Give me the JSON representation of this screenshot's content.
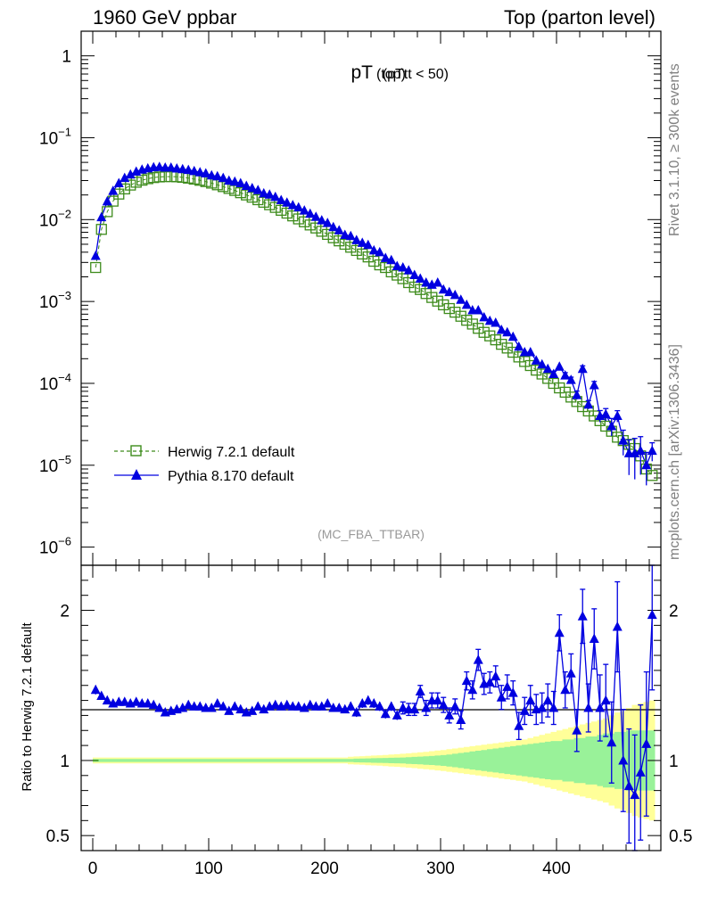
{
  "header": {
    "left": "1960 GeV ppbar",
    "right": "Top (parton level)"
  },
  "side_text": {
    "top": "Rivet 3.1.10, ≥ 300k events",
    "bottom": "mcplots.cern.ch [arXiv:1306.3436]"
  },
  "chart_data": {
    "type": "line",
    "title_main": "pT",
    "title_sub": "(top)",
    "title_cut": "(pTtt < 50)",
    "watermark": "(MC_FBA_TTBAR)",
    "x_range": [
      -10,
      490
    ],
    "x_ticks": [
      0,
      100,
      200,
      300,
      400
    ],
    "x_tick_labels": [
      "0",
      "100",
      "200",
      "300",
      "400"
    ],
    "upper": {
      "scale": "log",
      "y_range": [
        6e-07,
        2
      ],
      "y_ticks": [
        {
          "value": 1,
          "base": "1",
          "exp": ""
        },
        {
          "value": 0.1,
          "base": "10",
          "exp": "−1"
        },
        {
          "value": 0.01,
          "base": "10",
          "exp": "−2"
        },
        {
          "value": 0.001,
          "base": "10",
          "exp": "−3"
        },
        {
          "value": 0.0001,
          "base": "10",
          "exp": "−4"
        },
        {
          "value": 1e-05,
          "base": "10",
          "exp": "−5"
        },
        {
          "value": 1e-06,
          "base": "10",
          "exp": "−6"
        }
      ]
    },
    "lower": {
      "ylabel": "Ratio to Herwig 7.2.1 default",
      "y_range": [
        0.4,
        2.3
      ],
      "y_ticks": [
        0.5,
        1,
        2
      ],
      "y_tick_labels": [
        "0.5",
        "1",
        "2"
      ]
    },
    "bin_start": 0,
    "bin_width": 5,
    "legend": [
      {
        "name": "Herwig 7.2.1 default",
        "color": "#3d8b1b",
        "marker": "open-square",
        "dashed": true
      },
      {
        "name": "Pythia 8.170 default",
        "color": "#0000e0",
        "marker": "filled-triangle",
        "dashed": false
      }
    ],
    "herwig": [
      0.0026,
      0.0076,
      0.0125,
      0.0168,
      0.0205,
      0.0237,
      0.0264,
      0.0286,
      0.0303,
      0.0316,
      0.0326,
      0.0332,
      0.0335,
      0.0335,
      0.0333,
      0.0328,
      0.0321,
      0.0312,
      0.0302,
      0.0291,
      0.0279,
      0.0266,
      0.0253,
      0.024,
      0.0227,
      0.0213,
      0.02,
      0.0188,
      0.0175,
      0.0163,
      0.0152,
      0.0141,
      0.013,
      0.012,
      0.0111,
      0.0102,
      0.0094,
      0.0086,
      0.0079,
      0.0072,
      0.0066,
      0.006,
      0.0055,
      0.005,
      0.0046,
      0.0042,
      0.0038,
      0.0035,
      0.0031,
      0.0028,
      0.0026,
      0.0023,
      0.0021,
      0.0019,
      0.0017,
      0.0015,
      0.0014,
      0.00125,
      0.00112,
      0.00101,
      0.00091,
      0.00082,
      0.00074,
      0.00066,
      0.00059,
      0.00053,
      0.00047,
      0.00042,
      0.00038,
      0.00034,
      0.0003,
      0.00027,
      0.00024,
      0.00021,
      0.000185,
      0.000165,
      0.000145,
      0.00013,
      0.000115,
      0.0001,
      8.8e-05,
      7.8e-05,
      6.8e-05,
      6e-05,
      5.2e-05,
      4.6e-05,
      4e-05,
      3.5e-05,
      3e-05,
      2.6e-05,
      2.2e-05,
      2e-05,
      1.8e-05,
      1.6e-05,
      1.3e-05,
      9e-06,
      7.5e-06
    ],
    "pythia": [
      0.0036,
      0.0107,
      0.0167,
      0.0224,
      0.0278,
      0.0322,
      0.0355,
      0.0386,
      0.0408,
      0.0422,
      0.0435,
      0.0439,
      0.0432,
      0.0432,
      0.0421,
      0.0413,
      0.0404,
      0.0392,
      0.0378,
      0.0366,
      0.0346,
      0.0338,
      0.0322,
      0.0299,
      0.0291,
      0.0278,
      0.0258,
      0.0242,
      0.0229,
      0.0209,
      0.0202,
      0.0189,
      0.0173,
      0.0161,
      0.015,
      0.0141,
      0.0129,
      0.0118,
      0.0108,
      0.0098,
      0.0091,
      0.0081,
      0.0074,
      0.0065,
      0.0063,
      0.0056,
      0.0052,
      0.0049,
      0.0042,
      0.004,
      0.0034,
      0.0032,
      0.0027,
      0.0026,
      0.0024,
      0.0021,
      0.0019,
      0.0017,
      0.0016,
      0.0017,
      0.0014,
      0.0013,
      0.0012,
      0.00105,
      0.00091,
      0.00078,
      0.00078,
      0.00064,
      0.00058,
      0.00055,
      0.00045,
      0.00042,
      0.00037,
      0.00028,
      0.00024,
      0.00024,
      0.00019,
      0.00017,
      0.00015,
      0.00013,
      0.00016,
      0.000125,
      0.00011,
      7.2e-05,
      0.00015,
      5.5e-05,
      9.5e-05,
      4e-05,
      4.2e-05,
      3e-05,
      4e-05,
      2e-05,
      1.4e-05,
      1.4e-05,
      1.5e-05,
      1e-05,
      1.5e-05
    ],
    "ratio": [
      1.47,
      1.43,
      1.4,
      1.38,
      1.39,
      1.39,
      1.38,
      1.39,
      1.38,
      1.38,
      1.37,
      1.35,
      1.32,
      1.33,
      1.34,
      1.35,
      1.37,
      1.36,
      1.36,
      1.35,
      1.35,
      1.38,
      1.36,
      1.33,
      1.36,
      1.34,
      1.32,
      1.33,
      1.36,
      1.34,
      1.36,
      1.37,
      1.36,
      1.37,
      1.36,
      1.36,
      1.35,
      1.37,
      1.36,
      1.36,
      1.38,
      1.35,
      1.35,
      1.34,
      1.36,
      1.32,
      1.38,
      1.4,
      1.38,
      1.36,
      1.31,
      1.36,
      1.3,
      1.35,
      1.34,
      1.34,
      1.46,
      1.35,
      1.4,
      1.4,
      1.37,
      1.3,
      1.36,
      1.27,
      1.53,
      1.47,
      1.67,
      1.51,
      1.52,
      1.56,
      1.42,
      1.49,
      1.45,
      1.23,
      1.33,
      1.4,
      1.34,
      1.35,
      1.4,
      1.35,
      1.85,
      1.47,
      1.58,
      1.2,
      1.96,
      1.35,
      1.81,
      1.35,
      1.4,
      1.12,
      1.89,
      1.0,
      0.83,
      0.77,
      0.92,
      1.11,
      1.97
    ],
    "ratio_err": [
      0.03,
      0.02,
      0.02,
      0.02,
      0.02,
      0.02,
      0.02,
      0.02,
      0.02,
      0.02,
      0.02,
      0.02,
      0.02,
      0.02,
      0.02,
      0.02,
      0.02,
      0.02,
      0.02,
      0.02,
      0.02,
      0.02,
      0.02,
      0.02,
      0.02,
      0.02,
      0.02,
      0.02,
      0.02,
      0.02,
      0.02,
      0.02,
      0.02,
      0.02,
      0.02,
      0.02,
      0.02,
      0.02,
      0.02,
      0.02,
      0.02,
      0.02,
      0.02,
      0.02,
      0.03,
      0.03,
      0.03,
      0.03,
      0.03,
      0.03,
      0.03,
      0.03,
      0.03,
      0.04,
      0.04,
      0.04,
      0.04,
      0.05,
      0.05,
      0.05,
      0.05,
      0.05,
      0.05,
      0.06,
      0.06,
      0.06,
      0.07,
      0.07,
      0.07,
      0.07,
      0.08,
      0.08,
      0.08,
      0.09,
      0.09,
      0.1,
      0.1,
      0.1,
      0.11,
      0.11,
      0.12,
      0.12,
      0.13,
      0.14,
      0.18,
      0.16,
      0.2,
      0.22,
      0.24,
      0.27,
      0.3,
      0.34,
      0.38,
      0.4,
      0.45,
      0.48,
      0.5
    ],
    "band_green": [
      0.01,
      0.01,
      0.01,
      0.01,
      0.01,
      0.01,
      0.01,
      0.01,
      0.01,
      0.01,
      0.01,
      0.01,
      0.01,
      0.01,
      0.01,
      0.01,
      0.01,
      0.01,
      0.01,
      0.01,
      0.01,
      0.01,
      0.01,
      0.01,
      0.01,
      0.01,
      0.01,
      0.01,
      0.01,
      0.01,
      0.01,
      0.01,
      0.01,
      0.01,
      0.01,
      0.01,
      0.01,
      0.01,
      0.01,
      0.01,
      0.01,
      0.01,
      0.01,
      0.01,
      0.01,
      0.012,
      0.013,
      0.014,
      0.015,
      0.016,
      0.017,
      0.018,
      0.019,
      0.02,
      0.022,
      0.024,
      0.026,
      0.028,
      0.03,
      0.033,
      0.036,
      0.04,
      0.045,
      0.05,
      0.055,
      0.06,
      0.065,
      0.07,
      0.075,
      0.08,
      0.085,
      0.09,
      0.095,
      0.1,
      0.105,
      0.11,
      0.115,
      0.12,
      0.125,
      0.13,
      0.13,
      0.14,
      0.14,
      0.15,
      0.15,
      0.16,
      0.16,
      0.17,
      0.18,
      0.18,
      0.19,
      0.19,
      0.2,
      0.2,
      0.2,
      0.2,
      0.2
    ],
    "band_yellow": [
      0.02,
      0.02,
      0.02,
      0.02,
      0.02,
      0.02,
      0.02,
      0.02,
      0.02,
      0.02,
      0.02,
      0.02,
      0.02,
      0.02,
      0.02,
      0.02,
      0.02,
      0.02,
      0.02,
      0.02,
      0.02,
      0.02,
      0.02,
      0.02,
      0.02,
      0.02,
      0.02,
      0.02,
      0.02,
      0.02,
      0.02,
      0.02,
      0.02,
      0.02,
      0.02,
      0.02,
      0.02,
      0.02,
      0.02,
      0.02,
      0.02,
      0.02,
      0.02,
      0.02,
      0.025,
      0.027,
      0.029,
      0.031,
      0.033,
      0.035,
      0.037,
      0.04,
      0.042,
      0.045,
      0.048,
      0.051,
      0.055,
      0.058,
      0.062,
      0.066,
      0.07,
      0.075,
      0.08,
      0.085,
      0.09,
      0.095,
      0.1,
      0.105,
      0.11,
      0.115,
      0.12,
      0.125,
      0.13,
      0.135,
      0.14,
      0.15,
      0.16,
      0.17,
      0.18,
      0.19,
      0.2,
      0.21,
      0.22,
      0.23,
      0.24,
      0.25,
      0.26,
      0.27,
      0.28,
      0.3,
      0.32,
      0.33,
      0.35,
      0.37,
      0.38,
      0.39,
      0.4
    ]
  }
}
